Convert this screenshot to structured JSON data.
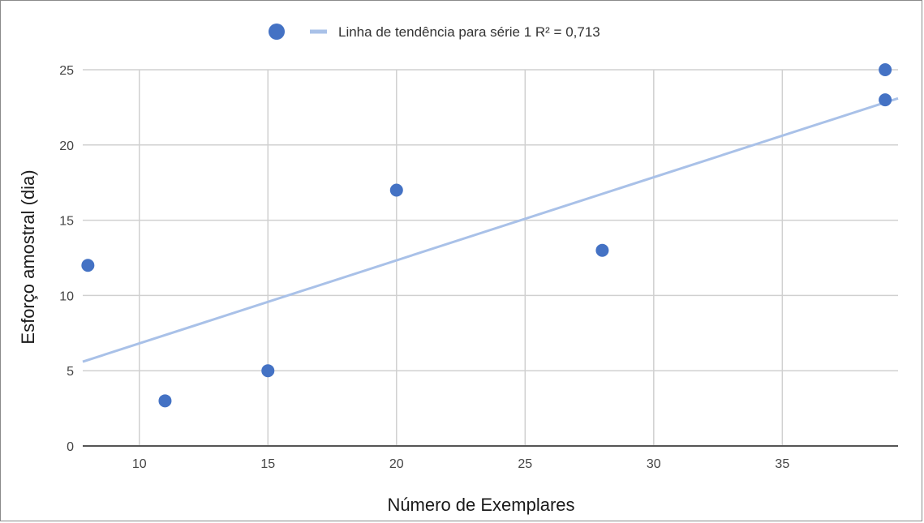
{
  "chart_data": {
    "type": "scatter",
    "title": "",
    "xlabel": "Número de Exemplares",
    "ylabel": "Esforço amostral (dia)",
    "xlim": [
      7.8,
      39.5
    ],
    "ylim": [
      0,
      25
    ],
    "x_ticks": [
      10,
      15,
      20,
      25,
      30,
      35
    ],
    "y_ticks": [
      0,
      5,
      10,
      15,
      20,
      25
    ],
    "grid": true,
    "legend_position": "top",
    "series": [
      {
        "x": [
          8,
          11,
          15,
          20,
          28,
          39,
          39
        ],
        "y": [
          12,
          3,
          5,
          17,
          13,
          23,
          25
        ],
        "color": "#4472c4"
      }
    ],
    "trendline": {
      "label": "Linha de tendência para série 1 R² = 0,713",
      "x": [
        7.8,
        39.5
      ],
      "y": [
        5.6,
        23.1
      ],
      "color": "#a9c1e8"
    }
  }
}
